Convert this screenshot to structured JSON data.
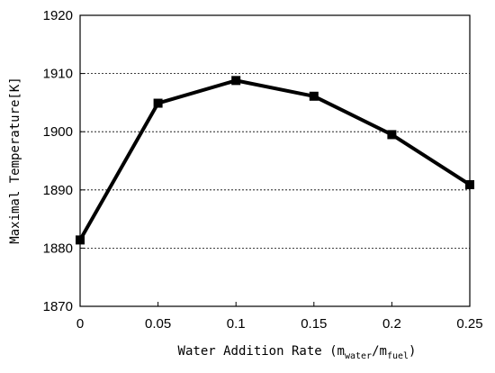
{
  "chart_data": {
    "type": "line",
    "title": "",
    "xlabel": {
      "prefix": "Water Addition Rate (m",
      "sub1": "water",
      "mid": "/m",
      "sub2": "fuel",
      "suffix": ")"
    },
    "ylabel": "Maximal Temperature[K]",
    "x_tick_labels": [
      "0",
      "0.05",
      "0.1",
      "0.15",
      "0.2",
      "0.25"
    ],
    "y_tick_labels": [
      "1870",
      "1880",
      "1890",
      "1900",
      "1910",
      "1920"
    ],
    "xlim": [
      0,
      0.25
    ],
    "ylim": [
      1870,
      1920
    ],
    "grid": "horizontal-dashed",
    "legend": "none",
    "series": [
      {
        "x": [
          0,
          0.05,
          0.1,
          0.15,
          0.2,
          0.25
        ],
        "y": [
          1881.4,
          1904.9,
          1908.8,
          1906.1,
          1899.5,
          1890.9
        ],
        "color": "#000000",
        "marker": "square"
      }
    ]
  }
}
